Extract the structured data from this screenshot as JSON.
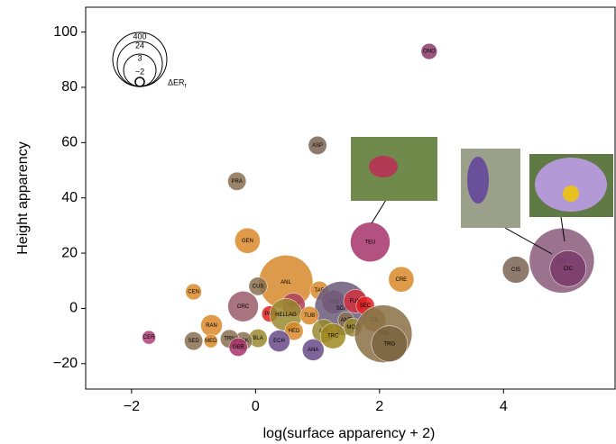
{
  "chart_data": {
    "type": "bubble",
    "x_label": "log(surface apparency + 2)",
    "y_label": "Height apparency",
    "xlim": [
      -2.74,
      5.8
    ],
    "ylim": [
      -29.2,
      109
    ],
    "xticks": [
      {
        "value": -2,
        "label": "−2"
      },
      0,
      2,
      4
    ],
    "yticks": [
      {
        "value": -20,
        "label": "−20"
      },
      0,
      20,
      40,
      60,
      80,
      100
    ],
    "size_legend": {
      "title": "ΔER",
      "title_sub": "r",
      "values": [
        400,
        24,
        3,
        {
          "value": -2,
          "label": "−2"
        }
      ]
    },
    "points": [
      {
        "label": "CER",
        "x": -1.72,
        "y": -10.5,
        "size": -1,
        "color": "#b0407a"
      },
      {
        "label": "ONO",
        "x": 2.8,
        "y": 93,
        "size": -0.5,
        "color": "#8b3a6b"
      },
      {
        "label": "ASP",
        "x": 1.0,
        "y": 59,
        "size": 0,
        "color": "#7a6455"
      },
      {
        "label": "PRA",
        "x": -0.3,
        "y": 46,
        "size": 0,
        "color": "#8a7050"
      },
      {
        "label": "GEN",
        "x": -0.13,
        "y": 24.5,
        "size": 1.5,
        "color": "#d98a2a"
      },
      {
        "label": "TEU",
        "x": 1.85,
        "y": 24,
        "size": 15,
        "color": "#a6336a"
      },
      {
        "label": "CEN",
        "x": -1.0,
        "y": 6,
        "size": -0.5,
        "color": "#d98a2a"
      },
      {
        "label": "ANL",
        "x": 0.49,
        "y": 9.5,
        "size": 400,
        "color": "#d6882a"
      },
      {
        "label": "CUS",
        "x": 0.04,
        "y": 8,
        "size": 0,
        "color": "#8a7050"
      },
      {
        "label": "TAR",
        "x": 1.03,
        "y": 6.5,
        "size": 0,
        "color": "#d98a2a"
      },
      {
        "label": "CRE",
        "x": 2.35,
        "y": 10.5,
        "size": 1.5,
        "color": "#d98a2a"
      },
      {
        "label": "CIS",
        "x": 4.2,
        "y": 14,
        "size": 1.8,
        "color": "#7a6455"
      },
      {
        "label": "LAV",
        "x": 4.94,
        "y": 17.3,
        "size": 850,
        "color": "#8a5a7a"
      },
      {
        "label": "CIC",
        "x": 5.04,
        "y": 14.4,
        "size": 9,
        "color": "#7a3a6a"
      },
      {
        "label": "ORC",
        "x": -0.2,
        "y": 0.7,
        "size": 2.6,
        "color": "#9a5a6a"
      },
      {
        "label": "SEV",
        "x": 0.61,
        "y": 1.3,
        "size": 1.1,
        "color": "#b0405a"
      },
      {
        "label": "ANE",
        "x": 1.26,
        "y": 2.3,
        "size": 1.1,
        "color": "#a04a6a"
      },
      {
        "label": "SCA",
        "x": 1.39,
        "y": 0,
        "size": 400,
        "color": "#6a5a7a"
      },
      {
        "label": "FUM",
        "x": 1.61,
        "y": 2.6,
        "size": 1.1,
        "color": "#d03040"
      },
      {
        "label": "SEC",
        "x": 1.77,
        "y": 1,
        "size": 0,
        "color": "#e02020"
      },
      {
        "label": "PAP",
        "x": 0.23,
        "y": -2,
        "size": -0.5,
        "color": "#e02020"
      },
      {
        "label": "HELLAG",
        "x": 0.49,
        "y": -2.3,
        "size": 3,
        "color": "#9a8a30"
      },
      {
        "label": "TUB",
        "x": 0.87,
        "y": -2.6,
        "size": 0,
        "color": "#d98a2a"
      },
      {
        "label": "RAN",
        "x": -0.71,
        "y": -6.2,
        "size": 0.7,
        "color": "#d98a2a"
      },
      {
        "label": "ANT",
        "x": 1.46,
        "y": -4.2,
        "size": -0.5,
        "color": "#8a7050"
      },
      {
        "label": "MOE",
        "x": 1.57,
        "y": -6.9,
        "size": 0,
        "color": "#9a8a30"
      },
      {
        "label": "TOL",
        "x": 1.91,
        "y": -4.2,
        "size": 1.1,
        "color": "#9a7a35"
      },
      {
        "label": "TRR",
        "x": 2.06,
        "y": -9.2,
        "size": 550,
        "color": "#8a7045"
      },
      {
        "label": "TRG",
        "x": 2.16,
        "y": -12.8,
        "size": 9,
        "color": "#7a6440"
      },
      {
        "label": "LIN",
        "x": 1.1,
        "y": -8.2,
        "size": 1.1,
        "color": "#9a8a30"
      },
      {
        "label": "TRC",
        "x": 1.25,
        "y": -10,
        "size": 1.5,
        "color": "#a08a20"
      },
      {
        "label": "HED",
        "x": 0.62,
        "y": -8.2,
        "size": 0,
        "color": "#d98a2a"
      },
      {
        "label": "ECH",
        "x": 0.38,
        "y": -11.8,
        "size": 0.7,
        "color": "#6a4a8a"
      },
      {
        "label": "ANA",
        "x": 0.93,
        "y": -15,
        "size": 0.7,
        "color": "#6a4a8a"
      },
      {
        "label": "BLA",
        "x": 0.04,
        "y": -10.8,
        "size": 0,
        "color": "#9a8a30"
      },
      {
        "label": "OSK",
        "x": -0.2,
        "y": -11.8,
        "size": 0,
        "color": "#8a7050"
      },
      {
        "label": "TRN",
        "x": -0.42,
        "y": -11,
        "size": 0,
        "color": "#8a7050"
      },
      {
        "label": "GER",
        "x": -0.28,
        "y": -14,
        "size": 0,
        "color": "#a6336a"
      },
      {
        "label": "SED",
        "x": -1.0,
        "y": -11.8,
        "size": 0,
        "color": "#8a7050"
      },
      {
        "label": "MED",
        "x": -0.72,
        "y": -11.8,
        "size": -1,
        "color": "#d98a2a"
      }
    ]
  }
}
